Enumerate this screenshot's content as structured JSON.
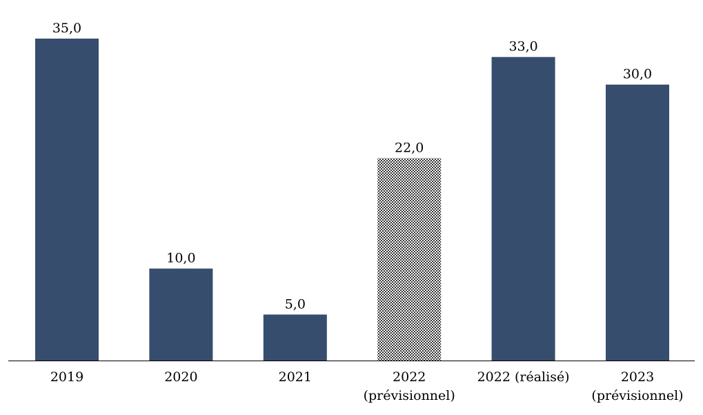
{
  "chart_data": {
    "type": "bar",
    "title": "",
    "xlabel": "",
    "ylabel": "",
    "ylim": [
      0,
      35
    ],
    "grid": false,
    "categories": [
      [
        "2019"
      ],
      [
        "2020"
      ],
      [
        "2021"
      ],
      [
        "2022",
        "(prévisionnel)"
      ],
      [
        "2022 (réalisé)"
      ],
      [
        "2023",
        "(prévisionnel)"
      ]
    ],
    "values": [
      35.0,
      10.0,
      5.0,
      22.0,
      33.0,
      30.0
    ],
    "data_labels": [
      "35,0",
      "10,0",
      "5,0",
      "22,0",
      "33,0",
      "30,0"
    ],
    "bar_styles": [
      "solid",
      "solid",
      "solid",
      "checkerboard",
      "solid",
      "solid"
    ],
    "colors": {
      "bar": "#364d6d",
      "pattern_dark": "#333333",
      "axis": "#000000"
    }
  }
}
